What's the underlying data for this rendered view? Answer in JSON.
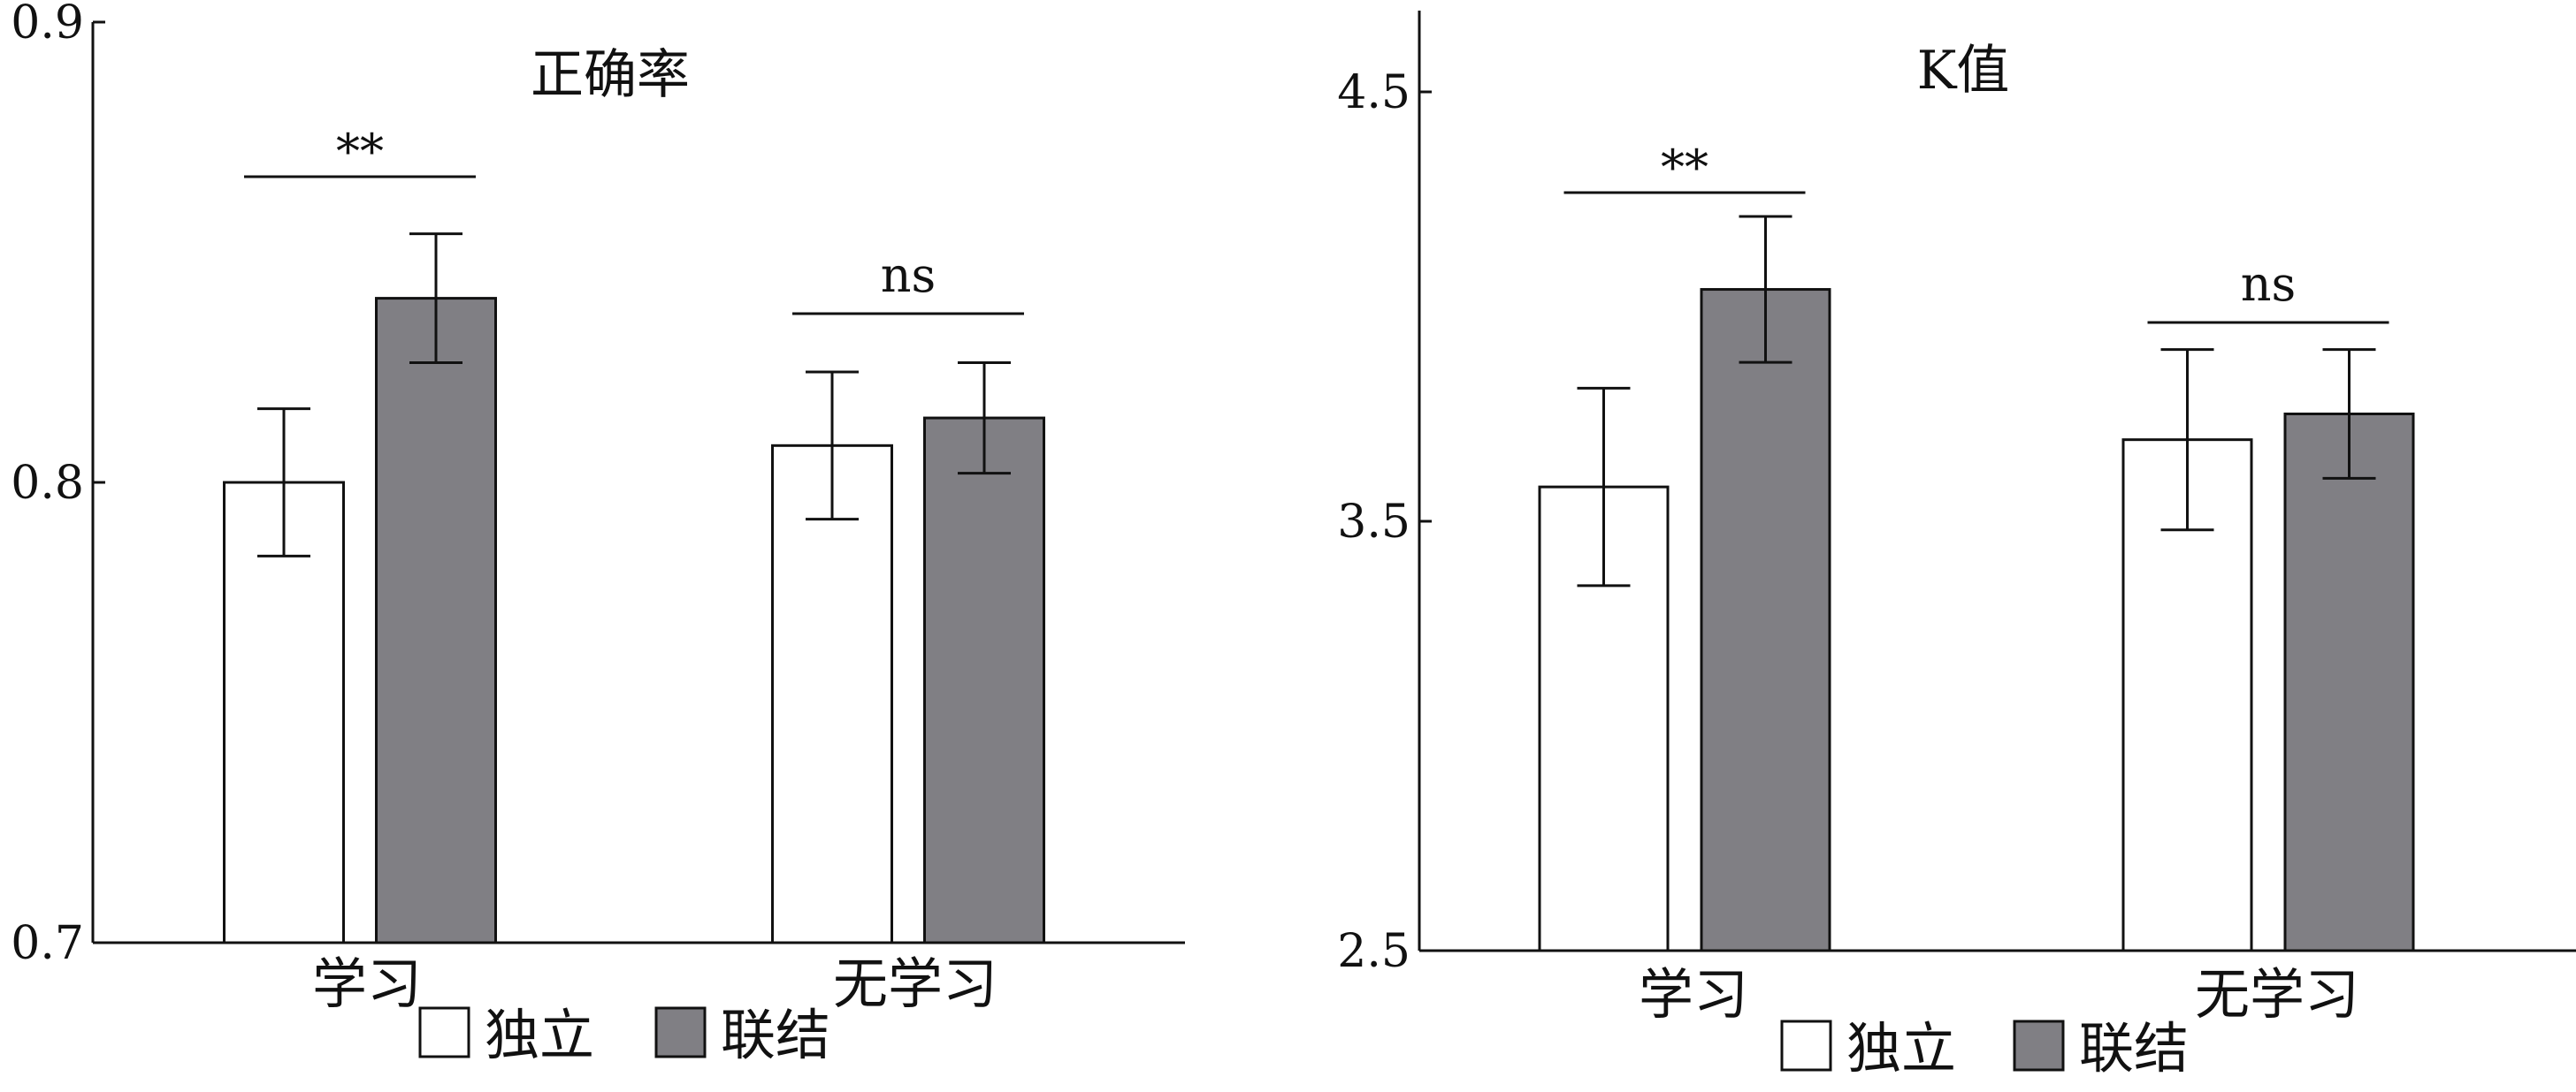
{
  "colors": {
    "independent": "#ffffff",
    "linked": "#807f84",
    "stroke": "#111111"
  },
  "chart_data": [
    {
      "type": "bar",
      "title": "正确率",
      "xlabel": "",
      "ylabel": "",
      "categories": [
        "学习",
        "无学习"
      ],
      "ylim": [
        0.7,
        0.9
      ],
      "yticks": [
        {
          "value": 0.7,
          "label": "0.7"
        },
        {
          "value": 0.8,
          "label": "0.8"
        },
        {
          "value": 0.9,
          "label": "0.9"
        }
      ],
      "series": [
        {
          "name": "独立",
          "values": [
            0.8,
            0.808
          ],
          "errors": [
            0.016,
            0.016
          ]
        },
        {
          "name": "联结",
          "values": [
            0.84,
            0.814
          ],
          "errors": [
            0.014,
            0.012
          ]
        }
      ],
      "significance": [
        {
          "category": "学习",
          "label": "**"
        },
        {
          "category": "无学习",
          "label": "ns"
        }
      ],
      "legend": [
        "独立",
        "联结"
      ],
      "legend_position": "bottom",
      "grid": false
    },
    {
      "type": "bar",
      "title": "K值",
      "xlabel": "",
      "ylabel": "",
      "categories": [
        "学习",
        "无学习"
      ],
      "ylim": [
        2.5,
        4.5
      ],
      "yticks": [
        {
          "value": 2.5,
          "label": "2.5"
        },
        {
          "value": 3.5,
          "label": "3.5"
        },
        {
          "value": 4.5,
          "label": "4.5"
        }
      ],
      "series": [
        {
          "name": "独立",
          "values": [
            3.58,
            3.69
          ],
          "errors": [
            0.23,
            0.21
          ]
        },
        {
          "name": "联结",
          "values": [
            4.04,
            3.75
          ],
          "errors": [
            0.17,
            0.15
          ]
        }
      ],
      "significance": [
        {
          "category": "学习",
          "label": "**"
        },
        {
          "category": "无学习",
          "label": "ns"
        }
      ],
      "legend": [
        "独立",
        "联结"
      ],
      "legend_position": "bottom",
      "grid": false
    }
  ]
}
